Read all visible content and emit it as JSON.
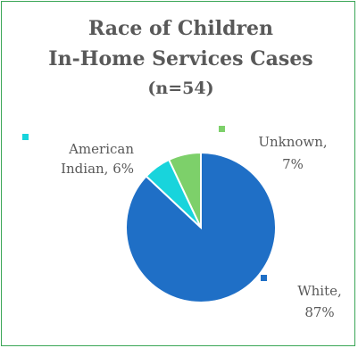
{
  "chart_data": {
    "type": "pie",
    "title_lines": [
      "Race of Children",
      "In-Home Services Cases",
      "(n=54)"
    ],
    "slices": [
      {
        "label_lines": [
          "White,",
          "87%"
        ],
        "value": 87,
        "color": "#1f6fc6"
      },
      {
        "label_lines": [
          "American",
          "Indian, 6%"
        ],
        "value": 6,
        "color": "#18d4dc"
      },
      {
        "label_lines": [
          "Unknown,",
          "7%"
        ],
        "value": 7,
        "color": "#7dd06a"
      }
    ],
    "legend_placement": "beside-labels"
  }
}
